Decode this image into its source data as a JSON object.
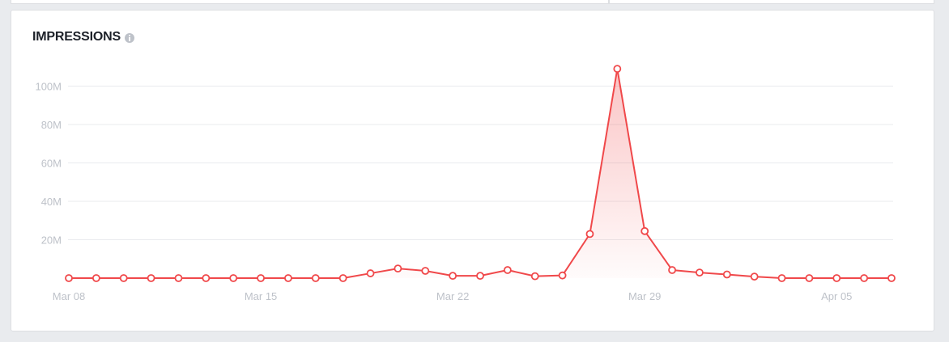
{
  "chart_data": {
    "type": "line",
    "title": "IMPRESSIONS",
    "xlabel": "",
    "ylabel": "",
    "x": [
      "Mar 08",
      "Mar 09",
      "Mar 10",
      "Mar 11",
      "Mar 12",
      "Mar 13",
      "Mar 14",
      "Mar 15",
      "Mar 16",
      "Mar 17",
      "Mar 18",
      "Mar 19",
      "Mar 20",
      "Mar 21",
      "Mar 22",
      "Mar 23",
      "Mar 24",
      "Mar 25",
      "Mar 26",
      "Mar 27",
      "Mar 28",
      "Mar 29",
      "Mar 30",
      "Mar 31",
      "Apr 01",
      "Apr 02",
      "Apr 03",
      "Apr 04",
      "Apr 05",
      "Apr 06",
      "Apr 07"
    ],
    "x_ticks": [
      "Mar 08",
      "Mar 15",
      "Mar 22",
      "Mar 29",
      "Apr 05"
    ],
    "y_ticks": [
      "20M",
      "40M",
      "60M",
      "80M",
      "100M"
    ],
    "y_tick_values": [
      20000000,
      40000000,
      60000000,
      80000000,
      100000000
    ],
    "ylim": [
      0,
      110000000
    ],
    "grid": true,
    "series": [
      {
        "name": "",
        "color": "#f0484a",
        "values": [
          0,
          0,
          0,
          0,
          0,
          0,
          0,
          0,
          0,
          0,
          0,
          2500000,
          5000000,
          3800000,
          1200000,
          1200000,
          4200000,
          1000000,
          1400000,
          23000000,
          109000000,
          24500000,
          4200000,
          2900000,
          1900000,
          800000,
          0,
          0,
          0,
          0,
          0
        ]
      }
    ]
  }
}
